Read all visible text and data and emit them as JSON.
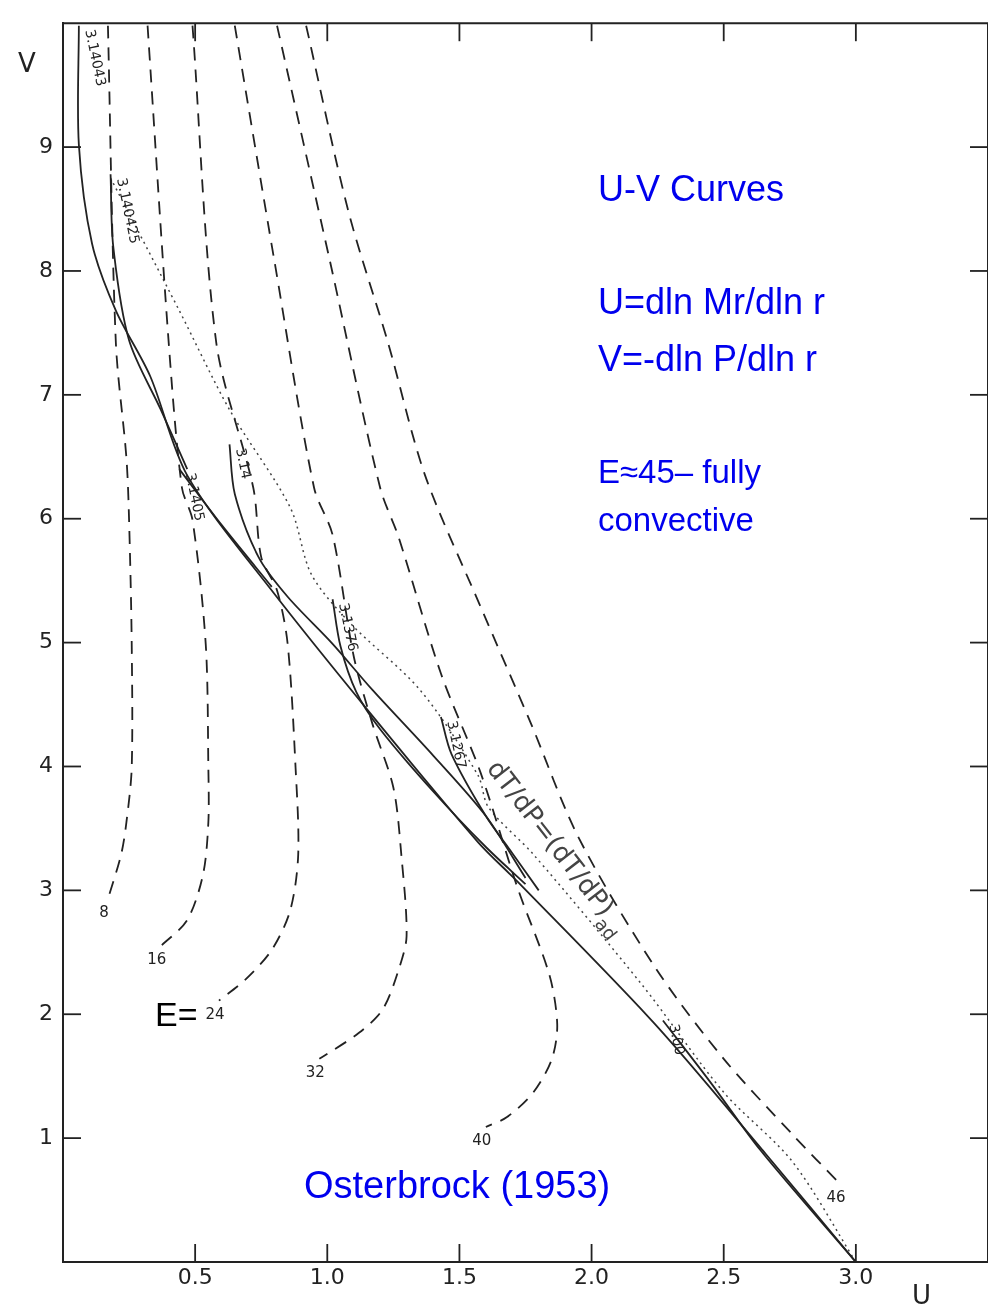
{
  "chart_data": {
    "type": "line",
    "xlabel": "U",
    "ylabel": "V",
    "xlim": [
      0,
      3.5
    ],
    "ylim": [
      0,
      10
    ],
    "xticks": [
      0.5,
      {
        "value": 1,
        "label": "1.0"
      },
      1.5,
      {
        "value": 2,
        "label": "2.0"
      },
      2.5,
      {
        "value": 3,
        "label": "3.0"
      }
    ],
    "yticks": [
      1,
      2,
      3,
      4,
      5,
      6,
      7,
      8,
      9
    ],
    "grid": false,
    "legend": false,
    "marker": "none",
    "annotations": [
      "U-V Curves",
      "U=dln Mr/dln r",
      "V=-dln P/dln r",
      "E≈45– fully convective",
      "Osterbrock (1953)",
      "E="
    ],
    "series": [
      {
        "name": "8",
        "type": "line",
        "line_style": "dashed",
        "color": "#222222",
        "x": [
          0.17,
          0.2,
          0.24,
          0.25,
          0.26,
          0.26,
          0.24,
          0.22,
          0.17
        ],
        "values": [
          9.98,
          7.42,
          6.49,
          5.99,
          4.99,
          3.99,
          3.55,
          3.29,
          2.93
        ]
      },
      {
        "name": "16",
        "type": "line",
        "line_style": "dashed",
        "color": "#222222",
        "x": [
          0.32,
          0.4,
          0.45,
          0.49,
          0.54,
          0.55,
          0.55,
          0.53,
          0.47,
          0.37
        ],
        "values": [
          9.98,
          7.42,
          6.25,
          5.99,
          4.99,
          3.99,
          3.55,
          3.13,
          2.76,
          2.55
        ]
      },
      {
        "name": "24",
        "type": "line",
        "line_style": "dashed",
        "color": "#222222",
        "x": [
          0.49,
          0.58,
          0.72,
          0.75,
          0.81,
          0.85,
          0.88,
          0.89,
          0.86,
          0.79,
          0.69,
          0.59
        ],
        "values": [
          9.98,
          7.42,
          6.25,
          5.69,
          5.42,
          4.99,
          3.99,
          3.29,
          2.84,
          2.52,
          2.28,
          2.11
        ]
      },
      {
        "name": "32",
        "type": "line",
        "line_style": "dashed",
        "color": "#222222",
        "x": [
          0.65,
          0.8,
          0.95,
          1.02,
          1.1,
          1.17,
          1.25,
          1.28,
          1.3,
          1.27,
          1.21,
          1.12,
          0.97
        ],
        "values": [
          9.98,
          8.08,
          6.25,
          5.87,
          4.89,
          4.35,
          3.83,
          3.29,
          2.63,
          2.36,
          2.04,
          1.85,
          1.64
        ]
      },
      {
        "name": "40",
        "type": "line",
        "line_style": "dashed",
        "color": "#222222",
        "x": [
          0.81,
          1.01,
          1.2,
          1.27,
          1.43,
          1.58,
          1.72,
          1.84,
          1.87,
          1.85,
          1.78,
          1.68,
          1.6
        ],
        "values": [
          9.98,
          8.08,
          6.25,
          5.85,
          4.75,
          3.95,
          3.02,
          2.32,
          1.92,
          1.64,
          1.37,
          1.17,
          1.09
        ]
      },
      {
        "name": "46",
        "type": "line",
        "line_style": "dashed",
        "color": "#222222",
        "x": [
          0.92,
          1.08,
          1.23,
          1.37,
          1.58,
          1.77,
          1.95,
          2.24,
          2.5,
          2.76,
          2.94
        ],
        "values": [
          9.98,
          8.48,
          7.42,
          6.35,
          5.29,
          4.35,
          3.43,
          2.38,
          1.64,
          1.03,
          0.63
        ]
      },
      {
        "name": "3.14043",
        "type": "line",
        "line_style": "solid",
        "color": "#222222",
        "x": [
          0.06,
          0.06,
          0.11,
          0.2,
          0.33,
          0.47,
          0.79,
          1.17,
          1.57,
          1.72,
          2.24,
          2.66,
          3.0
        ],
        "values": [
          9.98,
          9.02,
          8.22,
          7.68,
          7.15,
          6.35,
          5.42,
          4.41,
          3.39,
          3.07,
          1.92,
          0.87,
          0
        ]
      },
      {
        "name": "3.140425",
        "type": "line",
        "line_style": "solid",
        "color": "#222222",
        "x": [
          0.18,
          0.19,
          0.25,
          0.37,
          0.47
        ],
        "values": [
          8.78,
          8.2,
          7.44,
          6.88,
          6.4
        ]
      },
      {
        "name": "3.1405",
        "type": "line",
        "line_style": "solid",
        "color": "#222222",
        "x": [
          0.44,
          0.6,
          0.79
        ],
        "values": [
          6.4,
          5.95,
          5.45
        ]
      },
      {
        "name": "3.14",
        "type": "line",
        "line_style": "solid",
        "color": "#222222",
        "x": [
          0.63,
          0.65,
          0.74,
          0.85,
          1.02,
          1.17,
          1.4,
          1.6,
          1.75
        ],
        "values": [
          6.6,
          6.2,
          5.69,
          5.37,
          4.99,
          4.62,
          4.09,
          3.6,
          3.1
        ]
      },
      {
        "name": "3.1376",
        "type": "line",
        "line_style": "solid",
        "color": "#222222",
        "x": [
          1.02,
          1.05,
          1.11,
          1.2,
          1.4,
          1.6,
          1.75
        ],
        "values": [
          5.35,
          4.97,
          4.6,
          4.3,
          3.8,
          3.35,
          3.05
        ]
      },
      {
        "name": "3.1267",
        "type": "line",
        "line_style": "solid",
        "color": "#222222",
        "x": [
          1.43,
          1.47,
          1.6,
          1.7,
          1.8
        ],
        "values": [
          4.4,
          4.1,
          3.6,
          3.3,
          3.0
        ]
      },
      {
        "name": "3.00",
        "type": "line",
        "line_style": "solid",
        "color": "#222222",
        "x": [
          2.27,
          2.45,
          2.64,
          3.0
        ],
        "values": [
          1.95,
          1.45,
          0.9,
          0
        ]
      },
      {
        "name": "dT/dP=(dT/dP)$_{ad}$",
        "type": "line",
        "line_style": "dotted",
        "color": "#444444",
        "x": [
          0.18,
          0.44,
          0.63,
          0.86,
          0.94,
          1.09,
          1.35,
          1.57,
          1.61,
          1.78,
          2.19,
          2.5,
          2.76,
          3.0
        ],
        "values": [
          8.75,
          7.68,
          6.88,
          6.09,
          5.55,
          5.15,
          4.62,
          3.93,
          3.67,
          3.29,
          2.24,
          1.37,
          0.81,
          0
        ]
      }
    ]
  }
}
